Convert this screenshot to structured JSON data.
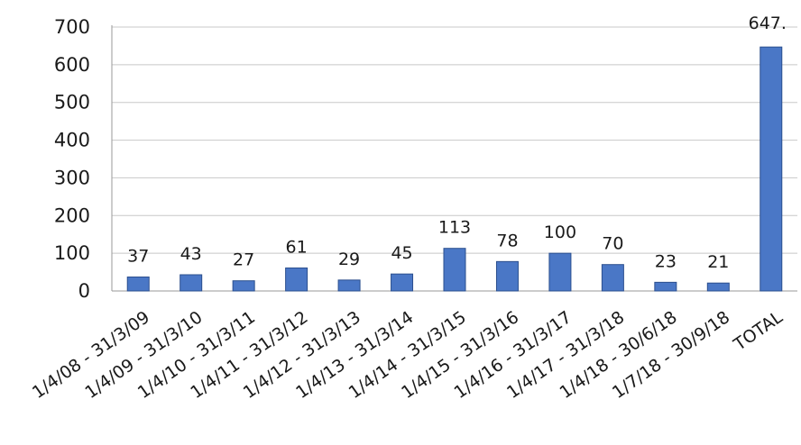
{
  "chart_data": {
    "type": "bar",
    "categories": [
      "1/4/08 - 31/3/09",
      "1/4/09 - 31/3/10",
      "1/4/10 - 31/3/11",
      "1/4/11 - 31/3/12",
      "1/4/12 - 31/3/13",
      "1/4/13 - 31/3/14",
      "1/4/14 - 31/3/15",
      "1/4/15 - 31/3/16",
      "1/4/16 - 31/3/17",
      "1/4/17 - 31/3/18",
      "1/4/18 - 30/6/18",
      "1/7/18 - 30/9/18",
      "TOTAL"
    ],
    "values": [
      37,
      43,
      27,
      61,
      29,
      45,
      113,
      78,
      100,
      70,
      23,
      21,
      647
    ],
    "data_labels": [
      "37",
      "43",
      "27",
      "61",
      "29",
      "45",
      "113",
      "78",
      "100",
      "70",
      "23",
      "21",
      "647."
    ],
    "title": "",
    "xlabel": "",
    "ylabel": "",
    "ylim": [
      0,
      700
    ],
    "yticks": [
      0,
      100,
      200,
      300,
      400,
      500,
      600,
      700
    ],
    "grid": true,
    "legend": "none",
    "bar_color": "#4a77c6"
  }
}
